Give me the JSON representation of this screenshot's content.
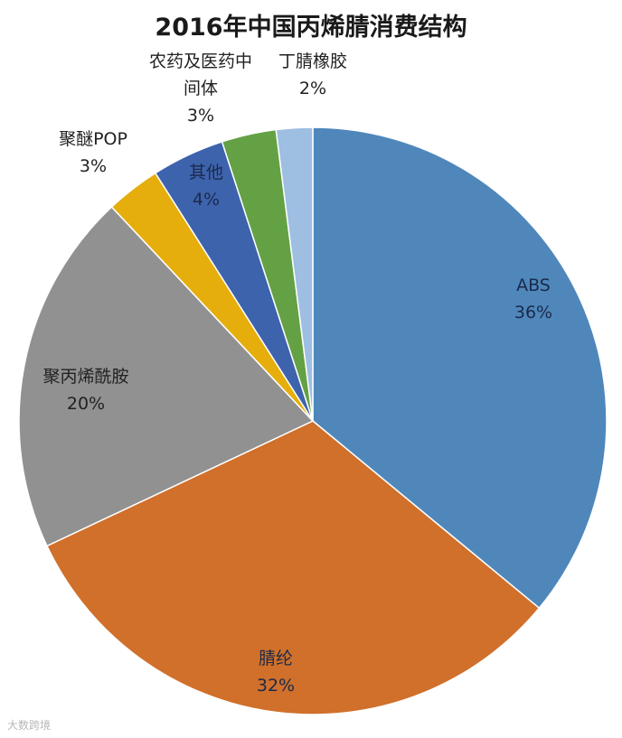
{
  "chart_data": {
    "type": "pie",
    "title": "2016年中国丙烯腈消费结构",
    "slices": [
      {
        "name": "ABS",
        "value": 36,
        "label": "36%",
        "color": "#4f87bb"
      },
      {
        "name": "腈纶",
        "value": 32,
        "label": "32%",
        "color": "#d0702b"
      },
      {
        "name": "聚丙烯酰胺",
        "value": 20,
        "label": "20%",
        "color": "#919191"
      },
      {
        "name": "聚醚POP",
        "value": 3,
        "label": "3%",
        "color": "#e6ae0c"
      },
      {
        "name": "其他",
        "value": 4,
        "label": "4%",
        "color": "#3e63ad"
      },
      {
        "name": "农药及医药中间体",
        "value": 3,
        "label": "3%",
        "color": "#64a144"
      },
      {
        "name": "丁腈橡胶",
        "value": 2,
        "label": "2%",
        "color": "#9ebee2"
      }
    ],
    "legend": "none (labels on/near slices)"
  },
  "watermark": "大数跨境"
}
